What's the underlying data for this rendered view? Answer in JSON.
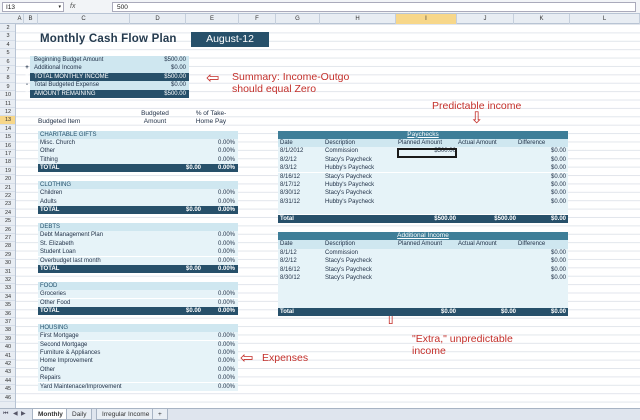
{
  "formula_bar": {
    "name_box": "I13",
    "fx": "fx",
    "value": "500"
  },
  "columns": [
    "A",
    "B",
    "C",
    "D",
    "E",
    "F",
    "G",
    "H",
    "I",
    "J",
    "K",
    "L"
  ],
  "rows": [
    "2",
    "3",
    "4",
    "5",
    "6",
    "7",
    "8",
    "9",
    "10",
    "11",
    "12",
    "13",
    "14",
    "15",
    "16",
    "17",
    "18",
    "19",
    "20",
    "21",
    "22",
    "23",
    "24",
    "25",
    "26",
    "27",
    "28",
    "29",
    "30",
    "31",
    "32",
    "33",
    "34",
    "35",
    "36",
    "37",
    "38",
    "39",
    "40",
    "41",
    "42",
    "43",
    "44",
    "45",
    "46"
  ],
  "title": "Monthly Cash Flow Plan",
  "month": "August-12",
  "summary": [
    {
      "op": "",
      "label": "Beginning Budget Amount",
      "value": "$500.00",
      "style": "light"
    },
    {
      "op": "+",
      "label": "Additional Income",
      "value": "$0.00",
      "style": "light"
    },
    {
      "op": "=",
      "label": "TOTAL MONTHLY INCOME",
      "value": "$500.00",
      "style": "dark"
    },
    {
      "op": "-",
      "label": "Total Budgeted Expense",
      "value": "$0.00",
      "style": "light"
    },
    {
      "op": "=",
      "label": "AMOUNT REMAINING",
      "value": "$500.00",
      "style": "dark"
    }
  ],
  "annotations": {
    "summary": "Summary:  Income-Outgo should equal Zero",
    "predictable": "Predictable income",
    "extra": "\"Extra,\" unpredictable income",
    "expenses": "Expenses"
  },
  "budget_headers": {
    "item": "Budgeted Item",
    "amount": "Budgeted Amount",
    "pct": "% of Take-Home Pay"
  },
  "budget_rows": [
    {
      "type": "cat",
      "label": "CHARITABLE GIFTS",
      "amt": "",
      "pct": ""
    },
    {
      "type": "item",
      "label": "Misc. Church",
      "amt": "",
      "pct": "0.00%"
    },
    {
      "type": "item",
      "label": "Other",
      "amt": "",
      "pct": "0.00%"
    },
    {
      "type": "item",
      "label": "Tithing",
      "amt": "",
      "pct": "0.00%"
    },
    {
      "type": "total",
      "label": "TOTAL",
      "amt": "$0.00",
      "pct": "0.00%"
    },
    {
      "type": "gap",
      "label": "",
      "amt": "",
      "pct": ""
    },
    {
      "type": "cat",
      "label": "CLOTHING",
      "amt": "",
      "pct": ""
    },
    {
      "type": "item",
      "label": "Children",
      "amt": "",
      "pct": "0.00%"
    },
    {
      "type": "item",
      "label": "Adults",
      "amt": "",
      "pct": "0.00%"
    },
    {
      "type": "total",
      "label": "TOTAL",
      "amt": "$0.00",
      "pct": "0.00%"
    },
    {
      "type": "gap",
      "label": "",
      "amt": "",
      "pct": ""
    },
    {
      "type": "cat",
      "label": "DEBTS",
      "amt": "",
      "pct": ""
    },
    {
      "type": "item",
      "label": "Debt Management Plan",
      "amt": "",
      "pct": "0.00%"
    },
    {
      "type": "item",
      "label": "St. Elizabeth",
      "amt": "",
      "pct": "0.00%"
    },
    {
      "type": "item",
      "label": "Student Loan",
      "amt": "",
      "pct": "0.00%"
    },
    {
      "type": "item",
      "label": "Overbudget last month",
      "amt": "",
      "pct": "0.00%"
    },
    {
      "type": "total",
      "label": "TOTAL",
      "amt": "$0.00",
      "pct": "0.00%"
    },
    {
      "type": "gap",
      "label": "",
      "amt": "",
      "pct": ""
    },
    {
      "type": "cat",
      "label": "FOOD",
      "amt": "",
      "pct": ""
    },
    {
      "type": "item",
      "label": "Groceries",
      "amt": "",
      "pct": "0.00%"
    },
    {
      "type": "item",
      "label": "Other Food",
      "amt": "",
      "pct": "0.00%"
    },
    {
      "type": "total",
      "label": "TOTAL",
      "amt": "$0.00",
      "pct": "0.00%"
    },
    {
      "type": "gap",
      "label": "",
      "amt": "",
      "pct": ""
    },
    {
      "type": "cat",
      "label": "HOUSING",
      "amt": "",
      "pct": ""
    },
    {
      "type": "item",
      "label": "First Mortgage",
      "amt": "",
      "pct": "0.00%"
    },
    {
      "type": "item",
      "label": "Second Mortgage",
      "amt": "",
      "pct": "0.00%"
    },
    {
      "type": "item",
      "label": "Furniture & Appliances",
      "amt": "",
      "pct": "0.00%"
    },
    {
      "type": "item",
      "label": "Home Improvement",
      "amt": "",
      "pct": "0.00%"
    },
    {
      "type": "item",
      "label": "Other",
      "amt": "",
      "pct": "0.00%"
    },
    {
      "type": "item",
      "label": "Repairs",
      "amt": "",
      "pct": "0.00%"
    },
    {
      "type": "item",
      "label": "Yard Maintenace/Improvement",
      "amt": "",
      "pct": "0.00%"
    }
  ],
  "paychecks": {
    "title": "Paychecks",
    "headers": [
      "Date",
      "Description",
      "Planned Amount",
      "Actual Amount",
      "Difference"
    ],
    "rows": [
      [
        "8/1/2012",
        "Commission",
        "$500.00",
        "",
        "$0.00"
      ],
      [
        "8/2/12",
        "Stacy's Paycheck",
        "",
        "",
        "$0.00"
      ],
      [
        "8/3/12",
        "Hubby's Paycheck",
        "",
        "",
        "$0.00"
      ],
      [
        "8/16/12",
        "Stacy's Paycheck",
        "",
        "",
        "$0.00"
      ],
      [
        "8/17/12",
        "Hubby's Paycheck",
        "",
        "",
        "$0.00"
      ],
      [
        "8/30/12",
        "Stacy's Paycheck",
        "",
        "",
        "$0.00"
      ],
      [
        "8/31/12",
        "Hubby's Paycheck",
        "",
        "",
        "$0.00"
      ],
      [
        "",
        "",
        "",
        "",
        ""
      ]
    ],
    "total": [
      "Total",
      "",
      "$500.00",
      "$500.00",
      "$0.00"
    ]
  },
  "additional_income": {
    "title": "Additional Income",
    "headers": [
      "Date",
      "Description",
      "Planned Amount",
      "Actual Amount",
      "Difference"
    ],
    "rows": [
      [
        "8/1/12",
        "Commission",
        "",
        "",
        "$0.00"
      ],
      [
        "8/2/12",
        "Stacy's Paycheck",
        "",
        "",
        "$0.00"
      ],
      [
        "8/16/12",
        "Stacy's Paycheck",
        "",
        "",
        "$0.00"
      ],
      [
        "8/30/12",
        "Stacy's Paycheck",
        "",
        "",
        "$0.00"
      ],
      [
        "",
        "",
        "",
        "",
        ""
      ],
      [
        "",
        "",
        "",
        "",
        ""
      ],
      [
        "",
        "",
        "",
        "",
        ""
      ]
    ],
    "total": [
      "Total",
      "",
      "$0.00",
      "$0.00",
      "$0.00"
    ]
  },
  "tabs": [
    "Monthly",
    "Daily",
    "Irregular Income"
  ],
  "colors": {
    "dark": "#27506a",
    "light": "#cfe7f0",
    "accent": "#c4302b"
  }
}
